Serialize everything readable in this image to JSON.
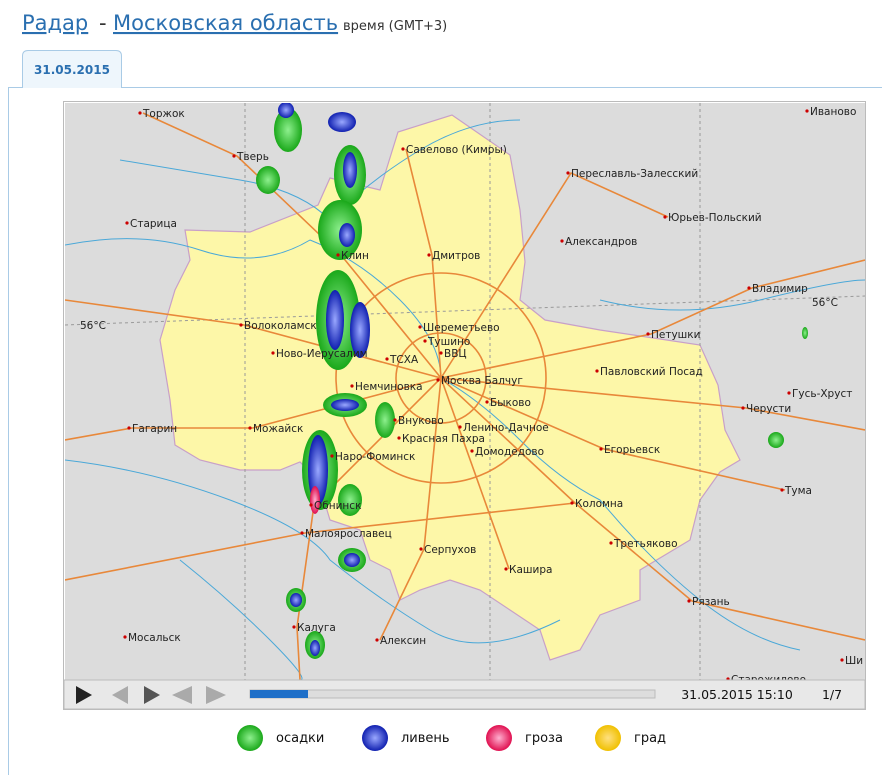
{
  "header": {
    "radar": "Радар",
    "separator": "-",
    "region": "Московская область",
    "time_zone": "время (GMT+3)"
  },
  "tab": "31.05.2015",
  "map": {
    "labels": [
      "Торжок",
      "Тверь",
      "Старица",
      "Савелово (Кимры)",
      "Переславль-Залесский",
      "Иваново",
      "Юрьев-Польский",
      "Александров",
      "Клин",
      "Дмитров",
      "Владимир",
      "56°С",
      "56°С",
      "Волоколамск",
      "Шереметьево",
      "Тушино",
      "Петушки",
      "Ново-Иерусалим",
      "ТСХА",
      "ВВЦ",
      "Павловский Посад",
      "Москва Балчуг",
      "Немчиновка",
      "Быково",
      "Черусти",
      "Гусь-Хруст",
      "Внуково",
      "Ленино-Дачное",
      "Гагарин",
      "Можайск",
      "Красная Пахра",
      "Домодедово",
      "Егорьевск",
      "Наро-Фоминск",
      "Тума",
      "Обнинск",
      "Коломна",
      "Малоярославец",
      "Третьяково",
      "Серпухов",
      "Кашира",
      "Рязань",
      "Калуга",
      "Мосальск",
      "Алексин",
      "Старожилово",
      "Ши"
    ]
  },
  "player": {
    "timestamp": "31.05.2015 15:10",
    "frame": "1/7"
  },
  "legend": [
    "осадки",
    "ливень",
    "гроза",
    "град"
  ]
}
